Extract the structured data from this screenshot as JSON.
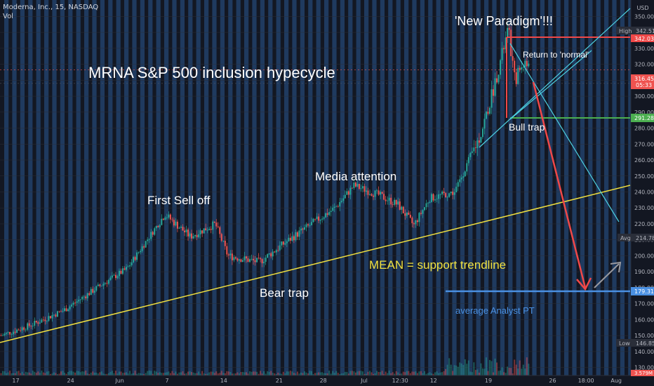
{
  "header": {
    "symbol_line": "Moderna, Inc., 15, NASDAQ",
    "vol_label": "Vol"
  },
  "price_axis": {
    "currency": "USD",
    "ticks": [
      "350.00",
      "340.00",
      "330.00",
      "320.00",
      "310.00",
      "300.00",
      "290.00",
      "280.00",
      "270.00",
      "260.00",
      "250.00",
      "240.00",
      "230.00",
      "220.00",
      "210.00",
      "200.00",
      "190.00",
      "180.00",
      "170.00",
      "160.00",
      "150.00",
      "140.00",
      "130.00"
    ],
    "badges": {
      "high": {
        "label": "High",
        "value": "342.51"
      },
      "red_level": "342.03",
      "last_price": "316.45",
      "countdown": "05:33",
      "green_level": "291.28",
      "avg": {
        "label": "Avg",
        "value": "214.78"
      },
      "blue_level": "179.31",
      "low": {
        "label": "Low",
        "value": "146.85"
      },
      "vol_level": "3.579M"
    }
  },
  "time_axis": {
    "ticks": [
      "17",
      "24",
      "Jun",
      "7",
      "14",
      "21",
      "28",
      "Jul",
      "12:30",
      "12",
      "19",
      "26",
      "18:00",
      "Aug"
    ]
  },
  "annotations": {
    "title": "MRNA S&P 500 inclusion hypecycle",
    "new_paradigm": "'New Paradigm'!!!",
    "return_normal": "Return to 'normal'",
    "bull_trap": "Bull trap",
    "media_attention": "Media attention",
    "first_selloff": "First Sell off",
    "bear_trap": "Bear trap",
    "mean_line": "MEAN = support trendline",
    "analyst_pt": "average Analyst PT"
  },
  "colors": {
    "background": "#131722",
    "stripe": "#1f3a5f",
    "up": "#26a69a",
    "down": "#ef5350",
    "trendline": "#f0e040",
    "red_line": "#f04848",
    "cyan_line": "#4dd0e1",
    "green_level": "#4caf50",
    "blue_level": "#4a90e2",
    "mean_text": "#f0e040",
    "analyst_text": "#4a90e2"
  },
  "chart_data": {
    "type": "candlestick",
    "title": "MRNA S&P 500 inclusion hypecycle",
    "ylim": [
      125,
      355
    ],
    "trendline": {
      "start": 148,
      "end": 248
    },
    "levels": {
      "high": 342.03,
      "bull_trap": 291.28,
      "analyst_pt": 179.31
    },
    "path": [
      [
        0,
        150
      ],
      [
        0.05,
        157
      ],
      [
        0.1,
        166
      ],
      [
        0.16,
        182
      ],
      [
        0.2,
        192
      ],
      [
        0.26,
        226
      ],
      [
        0.3,
        212
      ],
      [
        0.34,
        220
      ],
      [
        0.36,
        200
      ],
      [
        0.41,
        196
      ],
      [
        0.45,
        208
      ],
      [
        0.5,
        222
      ],
      [
        0.53,
        230
      ],
      [
        0.56,
        244
      ],
      [
        0.6,
        238
      ],
      [
        0.63,
        232
      ],
      [
        0.655,
        219
      ],
      [
        0.68,
        236
      ],
      [
        0.72,
        240
      ],
      [
        0.74,
        258
      ],
      [
        0.76,
        275
      ],
      [
        0.775,
        295
      ],
      [
        0.79,
        318
      ],
      [
        0.805,
        342
      ],
      [
        0.815,
        310
      ],
      [
        0.83,
        322
      ],
      [
        0.84,
        316
      ]
    ]
  }
}
